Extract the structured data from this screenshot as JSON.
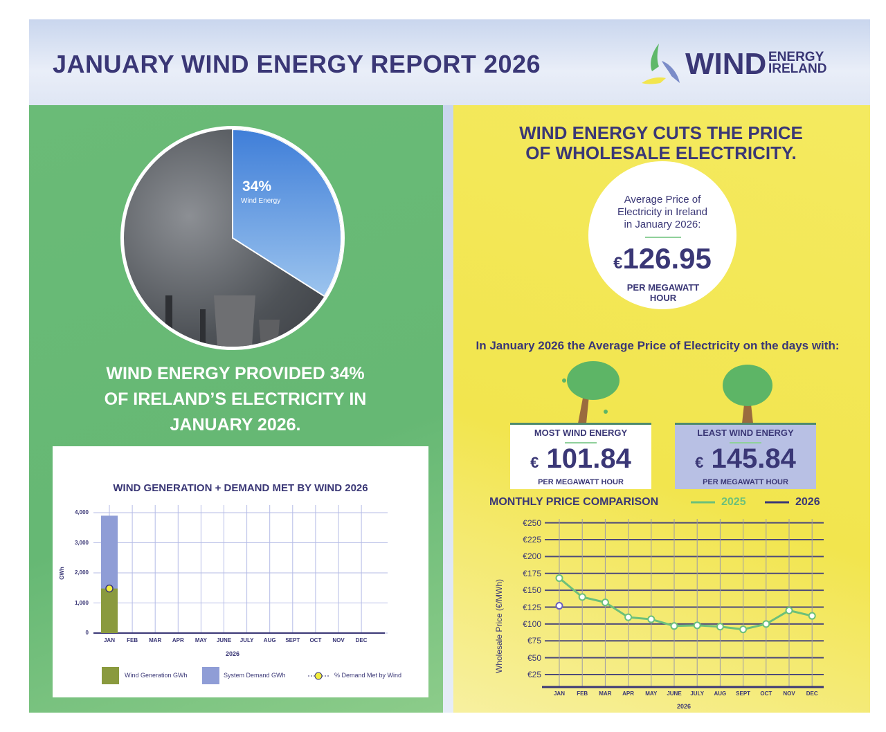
{
  "header": {
    "title": "JANUARY WIND ENERGY REPORT 2026",
    "logo": {
      "wind": "WIND",
      "energy": "ENERGY",
      "ireland": "IRELAND"
    }
  },
  "colors": {
    "navy": "#3a3776",
    "green": "#66b874",
    "yellow": "#f2e54e",
    "wind_bar": "#8a9a3e",
    "demand_bar": "#8f9dd6",
    "line_2025": "#6cc07a",
    "line_2026": "#3a3776"
  },
  "left": {
    "pie": {
      "percent": "34%",
      "label": "Wind Energy",
      "share": 34
    },
    "headline_lines": [
      "WIND ENERGY PROVIDED 34%",
      "OF IRELAND’S ELECTRICITY IN",
      "JANUARY 2026."
    ]
  },
  "right": {
    "title_lines": [
      "WIND ENERGY CUTS THE PRICE",
      "OF WHOLESALE ELECTRICITY."
    ],
    "average": {
      "label_lines": [
        "Average Price of",
        "Electricity in Ireland",
        "in January 2026:"
      ],
      "currency": "€",
      "value": "126.95",
      "unit_lines": [
        "PER MEGAWATT",
        "HOUR"
      ]
    },
    "days_text": "In January 2026 the Average Price of Electricity on the days with:",
    "most": {
      "heading": "MOST WIND ENERGY",
      "currency": "€",
      "value": "101.84",
      "unit": "PER MEGAWATT HOUR"
    },
    "least": {
      "heading": "LEAST WIND ENERGY",
      "currency": "€",
      "value": "145.84",
      "unit": "PER MEGAWATT HOUR"
    }
  },
  "chart_data": [
    {
      "type": "bar",
      "title": "WIND GENERATION + DEMAND MET BY WIND 2026",
      "xlabel": "2026",
      "ylabel": "GWh",
      "categories": [
        "JAN",
        "FEB",
        "MAR",
        "APR",
        "MAY",
        "JUNE",
        "JULY",
        "AUG",
        "SEPT",
        "OCT",
        "NOV",
        "DEC"
      ],
      "ylim": [
        0,
        4000
      ],
      "yticks": [
        "0",
        "1,000",
        "2,000",
        "3,000",
        "4,000"
      ],
      "grid": true,
      "legend": "bottom",
      "series": [
        {
          "name": "Wind Generation GWh",
          "values": [
            1480,
            null,
            null,
            null,
            null,
            null,
            null,
            null,
            null,
            null,
            null,
            null
          ]
        },
        {
          "name": "System Demand GWh",
          "values": [
            3900,
            null,
            null,
            null,
            null,
            null,
            null,
            null,
            null,
            null,
            null,
            null
          ]
        },
        {
          "name": "% Demand Met by Wind",
          "values": [
            34,
            null,
            null,
            null,
            null,
            null,
            null,
            null,
            null,
            null,
            null,
            null
          ]
        }
      ]
    },
    {
      "type": "line",
      "title": "MONTHLY PRICE COMPARISON",
      "xlabel": "2026",
      "ylabel": "Wholesale Price (€/MWh)",
      "categories": [
        "JAN",
        "FEB",
        "MAR",
        "APR",
        "MAY",
        "JUNE",
        "JULY",
        "AUG",
        "SEPT",
        "OCT",
        "NOV",
        "DEC"
      ],
      "ylim": [
        0,
        250
      ],
      "yticks": [
        "€25",
        "€50",
        "€75",
        "€100",
        "€125",
        "€150",
        "€175",
        "€200",
        "€225",
        "€250"
      ],
      "grid": true,
      "legend": "top-right",
      "series": [
        {
          "name": "2025",
          "values": [
            168,
            140,
            132,
            110,
            107,
            97,
            98,
            96,
            92,
            100,
            120,
            112
          ]
        },
        {
          "name": "2026",
          "values": [
            127,
            null,
            null,
            null,
            null,
            null,
            null,
            null,
            null,
            null,
            null,
            null
          ]
        }
      ]
    }
  ]
}
